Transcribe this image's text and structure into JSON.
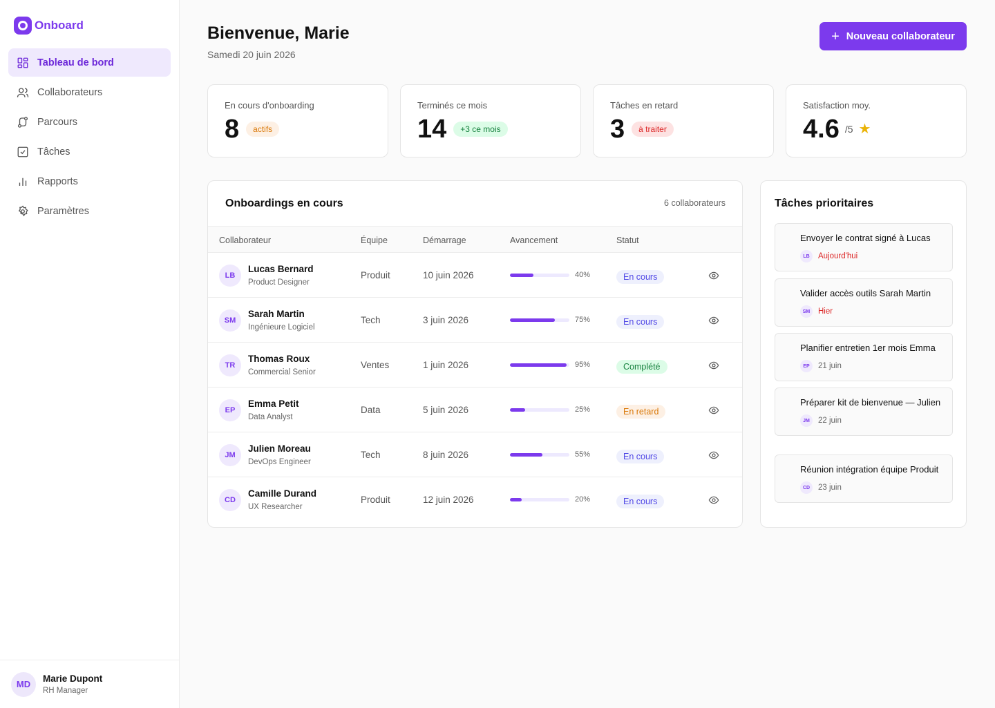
{
  "brand": {
    "name": "Onboard",
    "color": "#7c3aed"
  },
  "nav": [
    {
      "label": "Tableau de bord",
      "icon": "grid-icon"
    },
    {
      "label": "Collaborateurs",
      "icon": "users-icon"
    },
    {
      "label": "Parcours",
      "icon": "route-icon"
    },
    {
      "label": "Tâches",
      "icon": "checkbox-icon"
    },
    {
      "label": "Rapports",
      "icon": "bar-chart-icon"
    },
    {
      "label": "Paramètres",
      "icon": "gear-icon"
    }
  ],
  "user": {
    "initials": "MD",
    "name": "Marie Dupont",
    "role": "RH Manager"
  },
  "header": {
    "title": "Bienvenue, Marie",
    "date": "Samedi 20 juin 2026",
    "new_button": "Nouveau collaborateur"
  },
  "stats": [
    {
      "label": "En cours d'onboarding",
      "value": "8",
      "badge": "actifs"
    },
    {
      "label": "Terminés ce mois",
      "value": "14",
      "badge": "+3 ce mois"
    },
    {
      "label": "Tâches en retard",
      "value": "3",
      "badge": "à traiter"
    },
    {
      "label": "Satisfaction moy.",
      "value": "4.6",
      "suffix": "/5"
    }
  ],
  "onboardings": {
    "title": "Onboardings en cours",
    "count": "6 collaborateurs",
    "columns": [
      "Collaborateur",
      "Équipe",
      "Démarrage",
      "Avancement",
      "Statut"
    ],
    "rows": [
      {
        "initials": "LB",
        "name": "Lucas Bernard",
        "role": "Product Designer",
        "team": "Produit",
        "start": "10 juin 2026",
        "progress": 40,
        "progress_label": "40%",
        "status": "En cours",
        "status_type": "blue"
      },
      {
        "initials": "SM",
        "name": "Sarah Martin",
        "role": "Ingénieure Logiciel",
        "team": "Tech",
        "start": "3 juin 2026",
        "progress": 75,
        "progress_label": "75%",
        "status": "En cours",
        "status_type": "blue"
      },
      {
        "initials": "TR",
        "name": "Thomas Roux",
        "role": "Commercial Senior",
        "team": "Ventes",
        "start": "1 juin 2026",
        "progress": 95,
        "progress_label": "95%",
        "status": "Complété",
        "status_type": "green"
      },
      {
        "initials": "EP",
        "name": "Emma Petit",
        "role": "Data Analyst",
        "team": "Data",
        "start": "5 juin 2026",
        "progress": 25,
        "progress_label": "25%",
        "status": "En retard",
        "status_type": "orange"
      },
      {
        "initials": "JM",
        "name": "Julien Moreau",
        "role": "DevOps Engineer",
        "team": "Tech",
        "start": "8 juin 2026",
        "progress": 55,
        "progress_label": "55%",
        "status": "En cours",
        "status_type": "blue"
      },
      {
        "initials": "CD",
        "name": "Camille Durand",
        "role": "UX Researcher",
        "team": "Produit",
        "start": "12 juin 2026",
        "progress": 20,
        "progress_label": "20%",
        "status": "En cours",
        "status_type": "blue"
      }
    ]
  },
  "tasks": {
    "title": "Tâches prioritaires",
    "items": [
      {
        "title": "Envoyer le contrat signé à Lucas",
        "initials": "LB",
        "due": "Aujourd'hui",
        "urgent": true
      },
      {
        "title": "Valider accès outils Sarah Martin",
        "initials": "SM",
        "due": "Hier",
        "urgent": true
      },
      {
        "title": "Planifier entretien 1er mois Emma",
        "initials": "EP",
        "due": "21 juin",
        "urgent": false
      },
      {
        "title": "Préparer kit de bienvenue — Julien",
        "initials": "JM",
        "due": "22 juin",
        "urgent": false
      },
      {
        "title": "Réunion intégration équipe Produit",
        "initials": "CD",
        "due": "23 juin",
        "urgent": false
      }
    ]
  }
}
